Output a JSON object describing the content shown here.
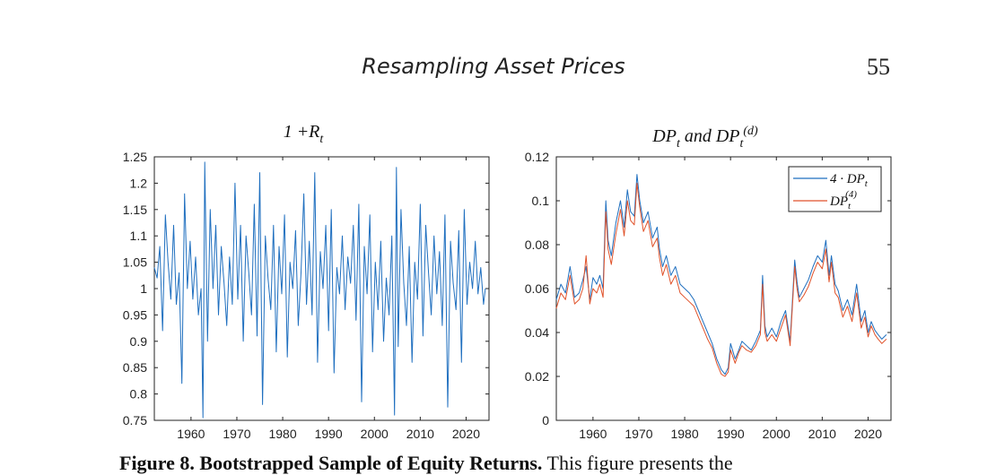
{
  "header": {
    "running_title": "Resampling Asset Prices",
    "page_number": "55"
  },
  "caption": {
    "label": "Figure 8. Bootstrapped Sample of Equity Returns.",
    "text": "This figure presents the"
  },
  "colors": {
    "blue": "#1f6fbf",
    "red": "#e0522a"
  },
  "chart_data": [
    {
      "type": "line",
      "title": "1 +R_t",
      "xlim": [
        1952,
        2025
      ],
      "ylim": [
        0.75,
        1.25
      ],
      "xticks": [
        1960,
        1970,
        1980,
        1990,
        2000,
        2010,
        2020
      ],
      "yticks": [
        0.75,
        0.8,
        0.85,
        0.9,
        0.95,
        1,
        1.05,
        1.1,
        1.15,
        1.2,
        1.25
      ],
      "ytick_labels": [
        "0.75",
        "0.8",
        "0.85",
        "0.9",
        "0.95",
        "1",
        "1.05",
        "1.1",
        "1.15",
        "1.2",
        "1.25"
      ],
      "series": [
        {
          "color": "#1f6fbf",
          "x": [
            1952.0,
            1952.6,
            1953.2,
            1953.8,
            1954.4,
            1955.0,
            1955.6,
            1956.2,
            1956.8,
            1957.4,
            1958.0,
            1958.6,
            1959.2,
            1959.8,
            1960.4,
            1961.0,
            1961.6,
            1962.2,
            1962.6,
            1963.0,
            1963.6,
            1964.2,
            1964.8,
            1965.4,
            1966.0,
            1966.6,
            1967.2,
            1967.8,
            1968.4,
            1969.0,
            1969.6,
            1970.2,
            1970.8,
            1971.4,
            1972.0,
            1972.6,
            1973.2,
            1973.8,
            1974.4,
            1975.0,
            1975.6,
            1976.2,
            1976.8,
            1977.4,
            1978.0,
            1978.6,
            1979.2,
            1979.8,
            1980.4,
            1981.0,
            1981.6,
            1982.2,
            1982.8,
            1983.4,
            1984.0,
            1984.6,
            1985.2,
            1985.8,
            1986.4,
            1987.0,
            1987.6,
            1988.2,
            1988.8,
            1989.4,
            1990.0,
            1990.6,
            1991.2,
            1991.8,
            1992.4,
            1993.0,
            1993.6,
            1994.2,
            1994.8,
            1995.4,
            1996.0,
            1996.6,
            1997.2,
            1997.8,
            1998.4,
            1999.0,
            1999.6,
            2000.2,
            2000.8,
            2001.4,
            2002.0,
            2002.6,
            2003.2,
            2003.8,
            2004.4,
            2004.8,
            2005.2,
            2005.8,
            2006.4,
            2007.0,
            2007.6,
            2008.2,
            2008.8,
            2009.4,
            2010.0,
            2010.6,
            2011.2,
            2011.8,
            2012.4,
            2013.0,
            2013.6,
            2014.2,
            2014.8,
            2015.4,
            2016.0,
            2016.6,
            2017.2,
            2017.8,
            2018.4,
            2019.0,
            2019.6,
            2020.2,
            2020.8,
            2021.4,
            2022.0,
            2022.6,
            2023.2,
            2023.8,
            2024.2
          ],
          "y": [
            1.04,
            1.02,
            1.08,
            0.92,
            1.14,
            1.05,
            0.98,
            1.12,
            0.97,
            1.03,
            0.82,
            1.18,
            1.0,
            1.09,
            0.98,
            1.06,
            0.95,
            1.0,
            0.755,
            1.24,
            0.9,
            1.15,
            1.0,
            1.12,
            0.95,
            1.08,
            1.01,
            0.93,
            1.06,
            0.97,
            1.2,
            0.98,
            1.12,
            0.9,
            1.1,
            1.03,
            0.95,
            1.16,
            0.91,
            1.22,
            0.78,
            1.1,
            1.02,
            0.96,
            1.12,
            0.88,
            1.08,
            0.99,
            1.14,
            0.87,
            1.05,
            1.0,
            1.11,
            0.93,
            1.03,
            1.18,
            0.97,
            1.09,
            0.95,
            1.22,
            0.86,
            1.07,
            1.0,
            1.12,
            0.92,
            1.15,
            0.84,
            1.04,
            0.99,
            1.1,
            0.96,
            1.06,
            1.01,
            1.12,
            0.94,
            1.16,
            0.785,
            1.08,
            0.99,
            1.14,
            0.88,
            1.05,
            0.96,
            1.09,
            0.9,
            1.02,
            0.95,
            1.1,
            0.76,
            1.23,
            0.89,
            1.15,
            1.01,
            0.93,
            1.08,
            0.86,
            1.05,
            0.98,
            1.16,
            0.91,
            1.12,
            1.03,
            0.95,
            1.1,
            0.99,
            1.07,
            0.93,
            1.14,
            0.775,
            1.09,
            1.01,
            0.96,
            1.11,
            0.86,
            1.15,
            0.97,
            1.05,
            1.0,
            1.09,
            0.99,
            1.04,
            0.97,
            1.0
          ]
        }
      ]
    },
    {
      "type": "line",
      "title": "DP_t and DP_t^(d)",
      "xlim": [
        1952,
        2025
      ],
      "ylim": [
        0,
        0.12
      ],
      "xticks": [
        1960,
        1970,
        1980,
        1990,
        2000,
        2010,
        2020
      ],
      "yticks": [
        0,
        0.02,
        0.04,
        0.06,
        0.08,
        0.1,
        0.12
      ],
      "ytick_labels": [
        "0",
        "0.02",
        "0.04",
        "0.06",
        "0.08",
        "0.1",
        "0.12"
      ],
      "legend": {
        "position": "top-right",
        "entries": [
          "4 · DP_t",
          "DP_t^(4)"
        ]
      },
      "series": [
        {
          "color": "#1f6fbf",
          "x": [
            1952.0,
            1953.0,
            1954.0,
            1955.0,
            1956.0,
            1957.0,
            1957.8,
            1958.5,
            1959.3,
            1960.0,
            1960.8,
            1961.5,
            1962.2,
            1962.8,
            1963.3,
            1964.0,
            1965.0,
            1966.0,
            1966.8,
            1967.5,
            1968.2,
            1969.0,
            1969.6,
            1970.2,
            1971.0,
            1972.0,
            1973.0,
            1974.0,
            1974.5,
            1975.2,
            1976.0,
            1977.0,
            1978.0,
            1979.0,
            1980.0,
            1981.0,
            1982.0,
            1983.0,
            1984.0,
            1985.0,
            1986.0,
            1987.0,
            1988.0,
            1988.8,
            1989.5,
            1990.0,
            1991.0,
            1991.8,
            1992.5,
            1993.5,
            1994.5,
            1995.5,
            1996.5,
            1997.0,
            1997.5,
            1998.0,
            1999.0,
            2000.0,
            2001.0,
            2002.0,
            2003.0,
            2004.0,
            2004.5,
            2005.0,
            2006.0,
            2007.0,
            2008.0,
            2009.0,
            2010.0,
            2010.8,
            2011.5,
            2012.0,
            2012.8,
            2013.5,
            2014.5,
            2015.5,
            2016.5,
            2017.5,
            2018.5,
            2019.3,
            2020.0,
            2020.7,
            2021.5,
            2022.2,
            2023.0,
            2024.0
          ],
          "y": [
            0.055,
            0.062,
            0.058,
            0.07,
            0.056,
            0.058,
            0.064,
            0.07,
            0.055,
            0.065,
            0.062,
            0.066,
            0.06,
            0.1,
            0.082,
            0.075,
            0.09,
            0.1,
            0.088,
            0.105,
            0.095,
            0.093,
            0.112,
            0.1,
            0.09,
            0.095,
            0.083,
            0.088,
            0.078,
            0.07,
            0.075,
            0.066,
            0.07,
            0.062,
            0.06,
            0.058,
            0.055,
            0.05,
            0.045,
            0.04,
            0.035,
            0.028,
            0.023,
            0.021,
            0.024,
            0.035,
            0.028,
            0.032,
            0.036,
            0.034,
            0.032,
            0.036,
            0.041,
            0.066,
            0.043,
            0.038,
            0.042,
            0.038,
            0.045,
            0.05,
            0.036,
            0.073,
            0.063,
            0.056,
            0.06,
            0.064,
            0.07,
            0.075,
            0.072,
            0.082,
            0.066,
            0.075,
            0.062,
            0.059,
            0.05,
            0.055,
            0.048,
            0.062,
            0.045,
            0.05,
            0.04,
            0.045,
            0.041,
            0.039,
            0.037,
            0.039
          ]
        },
        {
          "color": "#e0522a",
          "x": [
            1952.0,
            1953.0,
            1954.0,
            1955.0,
            1956.0,
            1957.0,
            1957.8,
            1958.5,
            1959.3,
            1960.0,
            1960.8,
            1961.5,
            1962.2,
            1962.8,
            1963.3,
            1964.0,
            1965.0,
            1966.0,
            1966.8,
            1967.5,
            1968.2,
            1969.0,
            1969.6,
            1970.2,
            1971.0,
            1972.0,
            1973.0,
            1974.0,
            1974.5,
            1975.2,
            1976.0,
            1977.0,
            1978.0,
            1979.0,
            1980.0,
            1981.0,
            1982.0,
            1983.0,
            1984.0,
            1985.0,
            1986.0,
            1987.0,
            1988.0,
            1988.8,
            1989.5,
            1990.0,
            1991.0,
            1991.8,
            1992.5,
            1993.5,
            1994.5,
            1995.5,
            1996.5,
            1997.0,
            1997.5,
            1998.0,
            1999.0,
            2000.0,
            2001.0,
            2002.0,
            2003.0,
            2004.0,
            2004.5,
            2005.0,
            2006.0,
            2007.0,
            2008.0,
            2009.0,
            2010.0,
            2010.8,
            2011.5,
            2012.0,
            2012.8,
            2013.5,
            2014.5,
            2015.5,
            2016.5,
            2017.5,
            2018.5,
            2019.3,
            2020.0,
            2020.7,
            2021.5,
            2022.2,
            2023.0,
            2024.0
          ],
          "y": [
            0.051,
            0.058,
            0.055,
            0.066,
            0.053,
            0.055,
            0.06,
            0.075,
            0.053,
            0.06,
            0.058,
            0.062,
            0.056,
            0.095,
            0.078,
            0.071,
            0.085,
            0.096,
            0.084,
            0.1,
            0.091,
            0.089,
            0.108,
            0.097,
            0.086,
            0.091,
            0.079,
            0.083,
            0.074,
            0.066,
            0.071,
            0.062,
            0.066,
            0.058,
            0.056,
            0.054,
            0.052,
            0.047,
            0.042,
            0.037,
            0.033,
            0.026,
            0.021,
            0.02,
            0.022,
            0.032,
            0.026,
            0.031,
            0.034,
            0.032,
            0.031,
            0.034,
            0.039,
            0.062,
            0.04,
            0.036,
            0.039,
            0.036,
            0.042,
            0.048,
            0.034,
            0.07,
            0.06,
            0.054,
            0.057,
            0.061,
            0.067,
            0.072,
            0.069,
            0.078,
            0.063,
            0.072,
            0.058,
            0.056,
            0.047,
            0.052,
            0.045,
            0.058,
            0.042,
            0.047,
            0.038,
            0.043,
            0.039,
            0.037,
            0.035,
            0.037
          ]
        }
      ]
    }
  ]
}
